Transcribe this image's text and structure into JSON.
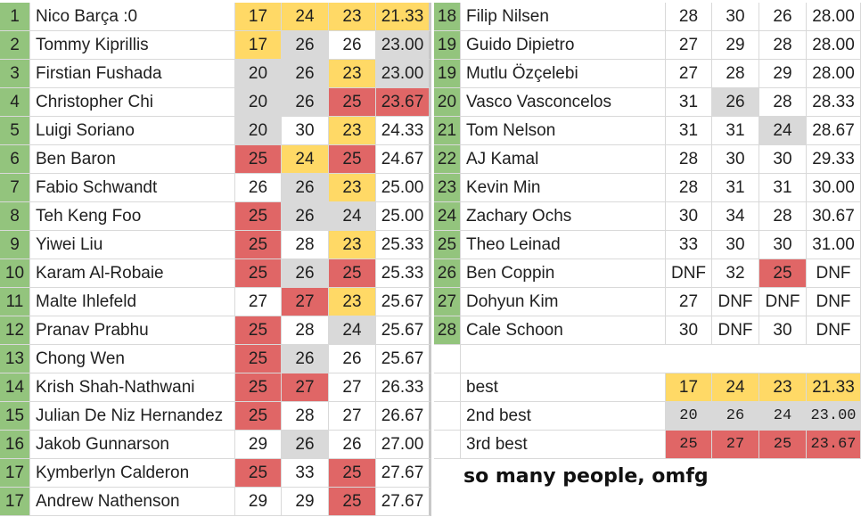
{
  "colors": {
    "rank_green": "#93c47d",
    "best_yellow": "#ffd966",
    "second_gray": "#d9d9d9",
    "third_red": "#e06666",
    "white": "#ffffff"
  },
  "left_rows": [
    {
      "rank": "1",
      "name": "Nico Barça :0",
      "s1": "17",
      "s2": "24",
      "s3": "23",
      "avg": "21.33",
      "c1": "y",
      "c2": "y",
      "c3": "y",
      "ca": "y"
    },
    {
      "rank": "2",
      "name": "Tommy Kiprillis",
      "s1": "17",
      "s2": "26",
      "s3": "26",
      "avg": "23.00",
      "c1": "y",
      "c2": "g",
      "c3": "w",
      "ca": "g"
    },
    {
      "rank": "3",
      "name": "Firstian Fushada",
      "s1": "20",
      "s2": "26",
      "s3": "23",
      "avg": "23.00",
      "c1": "g",
      "c2": "g",
      "c3": "y",
      "ca": "g"
    },
    {
      "rank": "4",
      "name": "Christopher Chi",
      "s1": "20",
      "s2": "26",
      "s3": "25",
      "avg": "23.67",
      "c1": "g",
      "c2": "g",
      "c3": "r",
      "ca": "r"
    },
    {
      "rank": "5",
      "name": "Luigi Soriano",
      "s1": "20",
      "s2": "30",
      "s3": "23",
      "avg": "24.33",
      "c1": "g",
      "c2": "w",
      "c3": "y",
      "ca": "w"
    },
    {
      "rank": "6",
      "name": "Ben Baron",
      "s1": "25",
      "s2": "24",
      "s3": "25",
      "avg": "24.67",
      "c1": "r",
      "c2": "y",
      "c3": "r",
      "ca": "w"
    },
    {
      "rank": "7",
      "name": "Fabio Schwandt",
      "s1": "26",
      "s2": "26",
      "s3": "23",
      "avg": "25.00",
      "c1": "w",
      "c2": "g",
      "c3": "y",
      "ca": "w"
    },
    {
      "rank": "8",
      "name": "Teh Keng Foo",
      "s1": "25",
      "s2": "26",
      "s3": "24",
      "avg": "25.00",
      "c1": "r",
      "c2": "g",
      "c3": "g",
      "ca": "w"
    },
    {
      "rank": "9",
      "name": "Yiwei Liu",
      "s1": "25",
      "s2": "28",
      "s3": "23",
      "avg": "25.33",
      "c1": "r",
      "c2": "w",
      "c3": "y",
      "ca": "w"
    },
    {
      "rank": "10",
      "name": "Karam Al-Robaie",
      "s1": "25",
      "s2": "26",
      "s3": "25",
      "avg": "25.33",
      "c1": "r",
      "c2": "g",
      "c3": "r",
      "ca": "w"
    },
    {
      "rank": "11",
      "name": "Malte Ihlefeld",
      "s1": "27",
      "s2": "27",
      "s3": "23",
      "avg": "25.67",
      "c1": "w",
      "c2": "r",
      "c3": "y",
      "ca": "w"
    },
    {
      "rank": "12",
      "name": "Pranav Prabhu",
      "s1": "25",
      "s2": "28",
      "s3": "24",
      "avg": "25.67",
      "c1": "r",
      "c2": "w",
      "c3": "g",
      "ca": "w"
    },
    {
      "rank": "13",
      "name": "Chong Wen",
      "s1": "25",
      "s2": "26",
      "s3": "26",
      "avg": "25.67",
      "c1": "r",
      "c2": "g",
      "c3": "w",
      "ca": "w"
    },
    {
      "rank": "14",
      "name": "Krish Shah-Nathwani",
      "s1": "25",
      "s2": "27",
      "s3": "27",
      "avg": "26.33",
      "c1": "r",
      "c2": "r",
      "c3": "w",
      "ca": "w"
    },
    {
      "rank": "15",
      "name": "Julian De Niz Hernandez",
      "s1": "25",
      "s2": "28",
      "s3": "27",
      "avg": "26.67",
      "c1": "r",
      "c2": "w",
      "c3": "w",
      "ca": "w"
    },
    {
      "rank": "16",
      "name": "Jakob Gunnarson",
      "s1": "29",
      "s2": "26",
      "s3": "26",
      "avg": "27.00",
      "c1": "w",
      "c2": "g",
      "c3": "w",
      "ca": "w"
    },
    {
      "rank": "17",
      "name": "Kymberlyn Calderon",
      "s1": "25",
      "s2": "33",
      "s3": "25",
      "avg": "27.67",
      "c1": "r",
      "c2": "w",
      "c3": "r",
      "ca": "w"
    },
    {
      "rank": "17",
      "name": "Andrew Nathenson",
      "s1": "29",
      "s2": "29",
      "s3": "25",
      "avg": "27.67",
      "c1": "w",
      "c2": "w",
      "c3": "r",
      "ca": "w"
    }
  ],
  "right_rows": [
    {
      "rank": "18",
      "name": "Filip Nilsen",
      "s1": "28",
      "s2": "30",
      "s3": "26",
      "avg": "28.00",
      "c1": "w",
      "c2": "w",
      "c3": "w",
      "ca": "w"
    },
    {
      "rank": "19",
      "name": "Guido Dipietro",
      "s1": "27",
      "s2": "29",
      "s3": "28",
      "avg": "28.00",
      "c1": "w",
      "c2": "w",
      "c3": "w",
      "ca": "w"
    },
    {
      "rank": "19",
      "name": "Mutlu Özçelebi",
      "s1": "27",
      "s2": "28",
      "s3": "29",
      "avg": "28.00",
      "c1": "w",
      "c2": "w",
      "c3": "w",
      "ca": "w"
    },
    {
      "rank": "20",
      "name": "Vasco Vasconcelos",
      "s1": "31",
      "s2": "26",
      "s3": "28",
      "avg": "28.33",
      "c1": "w",
      "c2": "g",
      "c3": "w",
      "ca": "w"
    },
    {
      "rank": "21",
      "name": "Tom Nelson",
      "s1": "31",
      "s2": "31",
      "s3": "24",
      "avg": "28.67",
      "c1": "w",
      "c2": "w",
      "c3": "g",
      "ca": "w"
    },
    {
      "rank": "22",
      "name": "AJ Kamal",
      "s1": "28",
      "s2": "30",
      "s3": "30",
      "avg": "29.33",
      "c1": "w",
      "c2": "w",
      "c3": "w",
      "ca": "w"
    },
    {
      "rank": "23",
      "name": "Kevin Min",
      "s1": "28",
      "s2": "31",
      "s3": "31",
      "avg": "30.00",
      "c1": "w",
      "c2": "w",
      "c3": "w",
      "ca": "w"
    },
    {
      "rank": "24",
      "name": "Zachary Ochs",
      "s1": "30",
      "s2": "34",
      "s3": "28",
      "avg": "30.67",
      "c1": "w",
      "c2": "w",
      "c3": "w",
      "ca": "w"
    },
    {
      "rank": "25",
      "name": "Theo Leinad",
      "s1": "33",
      "s2": "30",
      "s3": "30",
      "avg": "31.00",
      "c1": "w",
      "c2": "w",
      "c3": "w",
      "ca": "w"
    },
    {
      "rank": "26",
      "name": "Ben Coppin",
      "s1": "DNF",
      "s2": "32",
      "s3": "25",
      "avg": "DNF",
      "c1": "w",
      "c2": "w",
      "c3": "r",
      "ca": "w"
    },
    {
      "rank": "27",
      "name": "Dohyun Kim",
      "s1": "27",
      "s2": "DNF",
      "s3": "DNF",
      "avg": "DNF",
      "c1": "w",
      "c2": "w",
      "c3": "w",
      "ca": "w"
    },
    {
      "rank": "28",
      "name": "Cale Schoon",
      "s1": "30",
      "s2": "DNF",
      "s3": "30",
      "avg": "DNF",
      "c1": "w",
      "c2": "w",
      "c3": "w",
      "ca": "w"
    }
  ],
  "summary_rows": [
    {
      "label": "best",
      "s1": "17",
      "s2": "24",
      "s3": "23",
      "avg": "21.33",
      "color": "y",
      "mono": false
    },
    {
      "label": "2nd best",
      "s1": "20",
      "s2": "26",
      "s3": "24",
      "avg": "23.00",
      "color": "g",
      "mono": true
    },
    {
      "label": "3rd best",
      "s1": "25",
      "s2": "27",
      "s3": "25",
      "avg": "23.67",
      "color": "r",
      "mono": true
    }
  ],
  "note": "so many people, omfg"
}
